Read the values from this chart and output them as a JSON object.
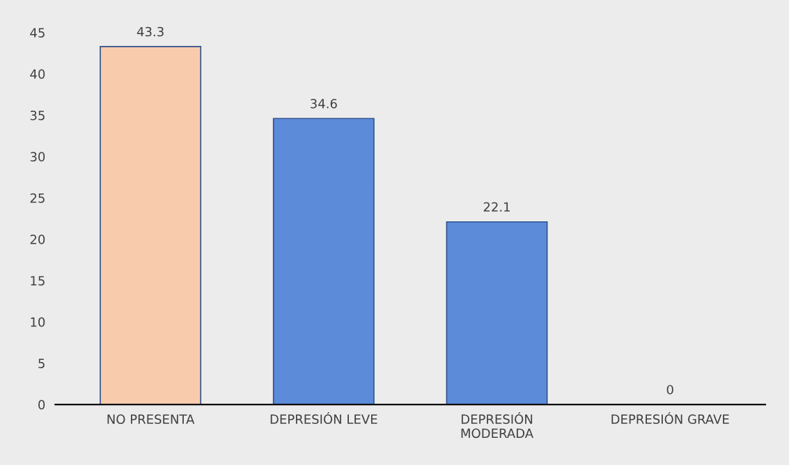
{
  "chart_data": {
    "type": "bar",
    "categories": [
      "NO PRESENTA",
      "DEPRESIÓN LEVE",
      "DEPRESIÓN\nMODERADA",
      "DEPRESIÓN GRAVE"
    ],
    "values": [
      43.3,
      34.6,
      22.1,
      0
    ],
    "colors": [
      "#f8cbad",
      "#5b8bd9",
      "#5b8bd9",
      "#5b8bd9"
    ],
    "ylim": [
      0,
      45
    ],
    "yticks": [
      0,
      5,
      10,
      15,
      20,
      25,
      30,
      35,
      40,
      45
    ],
    "data_labels": true
  }
}
